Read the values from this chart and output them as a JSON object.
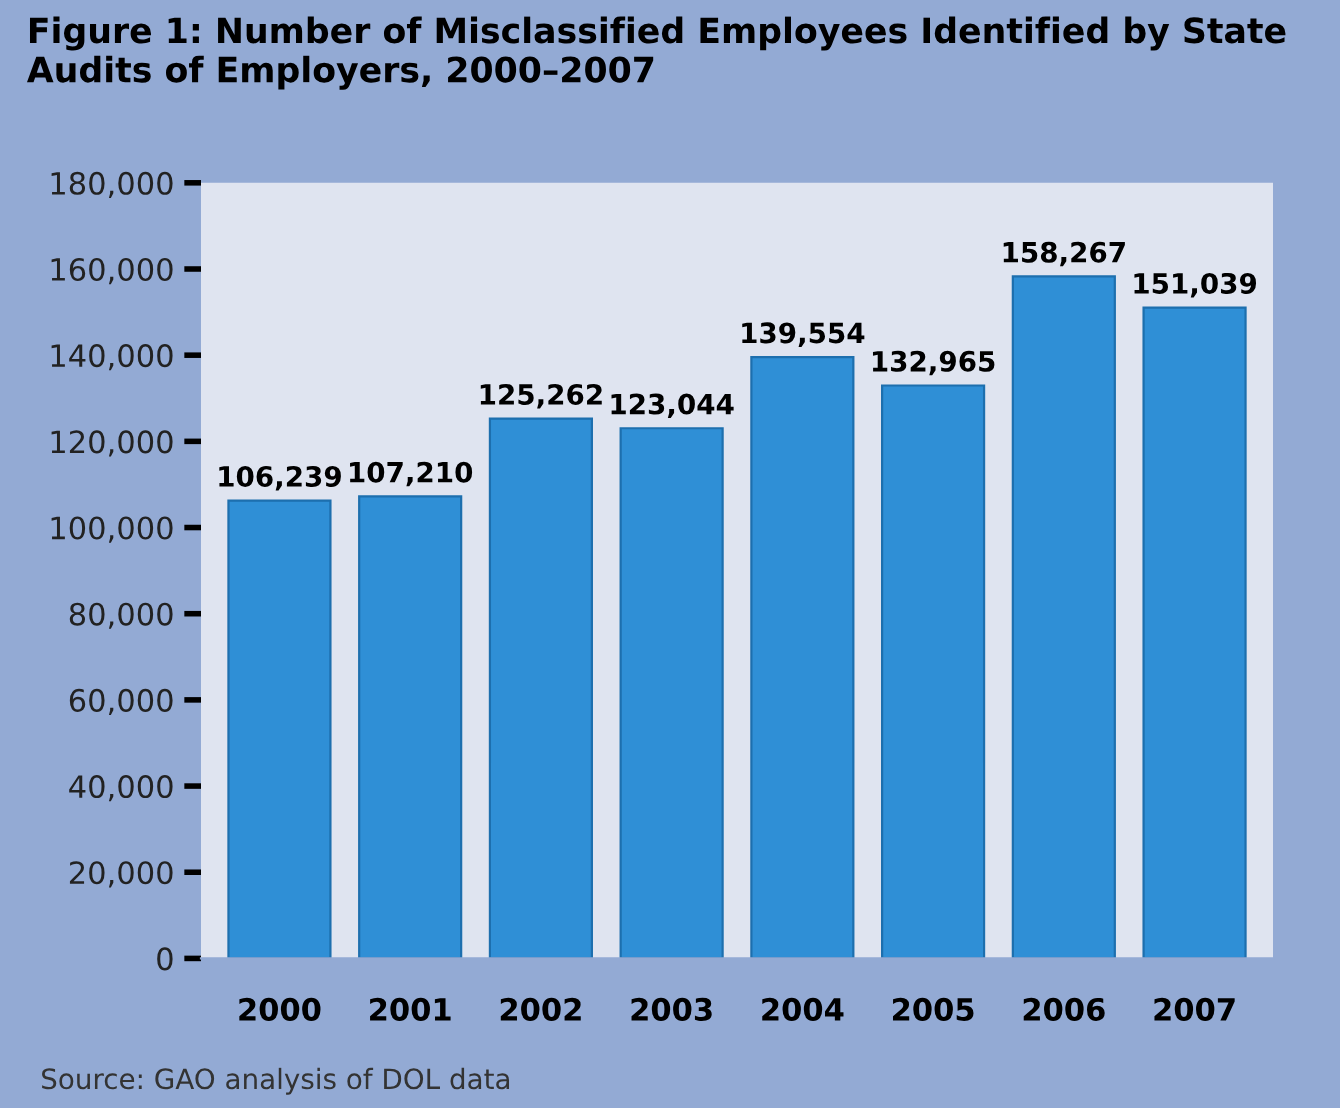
{
  "chart_data": {
    "type": "bar",
    "title": "Figure 1: Number of Misclassified Employees Identified by State Audits of Employers, 2000–2007",
    "categories": [
      "2000",
      "2001",
      "2002",
      "2003",
      "2004",
      "2005",
      "2006",
      "2007"
    ],
    "values": [
      106239,
      107210,
      125262,
      123044,
      139554,
      132965,
      158267,
      151039
    ],
    "color": "#2f8fd6",
    "ylim": [
      0,
      180000
    ],
    "yticks": [
      {
        "value": 0,
        "label": "0"
      },
      {
        "value": 20000,
        "label": "20,000"
      },
      {
        "value": 40000,
        "label": "40,000"
      },
      {
        "value": 60000,
        "label": "60,000"
      },
      {
        "value": 80000,
        "label": "80,000"
      },
      {
        "value": 100000,
        "label": "100,000"
      },
      {
        "value": 120000,
        "label": "120,000"
      },
      {
        "value": 140000,
        "label": "140,000"
      },
      {
        "value": 160000,
        "label": "160,000"
      },
      {
        "value": 180000,
        "label": "180,000"
      }
    ],
    "value_labels": [
      "106,239",
      "107,210",
      "125,262",
      "123,044",
      "139,554",
      "132,965",
      "158,267",
      "151,039"
    ],
    "grid": false,
    "legend": false,
    "annotations": [
      "Source: GAO analysis of DOL data"
    ]
  }
}
